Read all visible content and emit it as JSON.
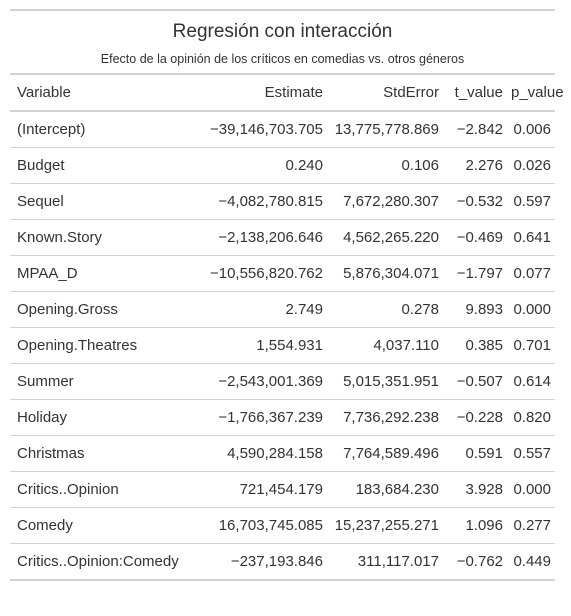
{
  "title": "Regresión con interacción",
  "subtitle": "Efecto de la opinión de los críticos en comedias vs. otros géneros",
  "columns": [
    "Variable",
    "Estimate",
    "StdError",
    "t_value",
    "p_value"
  ],
  "rows": [
    {
      "variable": "(Intercept)",
      "estimate": "−39,146,703.705",
      "stderror": "13,775,778.869",
      "t_value": "−2.842",
      "p_value": "0.006"
    },
    {
      "variable": "Budget",
      "estimate": "0.240",
      "stderror": "0.106",
      "t_value": "2.276",
      "p_value": "0.026"
    },
    {
      "variable": "Sequel",
      "estimate": "−4,082,780.815",
      "stderror": "7,672,280.307",
      "t_value": "−0.532",
      "p_value": "0.597"
    },
    {
      "variable": "Known.Story",
      "estimate": "−2,138,206.646",
      "stderror": "4,562,265.220",
      "t_value": "−0.469",
      "p_value": "0.641"
    },
    {
      "variable": "MPAA_D",
      "estimate": "−10,556,820.762",
      "stderror": "5,876,304.071",
      "t_value": "−1.797",
      "p_value": "0.077"
    },
    {
      "variable": "Opening.Gross",
      "estimate": "2.749",
      "stderror": "0.278",
      "t_value": "9.893",
      "p_value": "0.000"
    },
    {
      "variable": "Opening.Theatres",
      "estimate": "1,554.931",
      "stderror": "4,037.110",
      "t_value": "0.385",
      "p_value": "0.701"
    },
    {
      "variable": "Summer",
      "estimate": "−2,543,001.369",
      "stderror": "5,015,351.951",
      "t_value": "−0.507",
      "p_value": "0.614"
    },
    {
      "variable": "Holiday",
      "estimate": "−1,766,367.239",
      "stderror": "7,736,292.238",
      "t_value": "−0.228",
      "p_value": "0.820"
    },
    {
      "variable": "Christmas",
      "estimate": "4,590,284.158",
      "stderror": "7,764,589.496",
      "t_value": "0.591",
      "p_value": "0.557"
    },
    {
      "variable": "Critics..Opinion",
      "estimate": "721,454.179",
      "stderror": "183,684.230",
      "t_value": "3.928",
      "p_value": "0.000"
    },
    {
      "variable": "Comedy",
      "estimate": "16,703,745.085",
      "stderror": "15,237,255.271",
      "t_value": "1.096",
      "p_value": "0.277"
    },
    {
      "variable": "Critics..Opinion:Comedy",
      "estimate": "−237,193.846",
      "stderror": "311,117.017",
      "t_value": "−0.762",
      "p_value": "0.449"
    }
  ]
}
